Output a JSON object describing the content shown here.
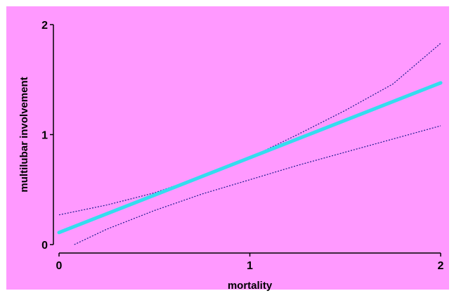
{
  "chart_data": {
    "type": "line",
    "title": "",
    "xlabel": "mortality",
    "ylabel": "multilubar involvement",
    "xlim": [
      0,
      2
    ],
    "ylim": [
      0,
      2
    ],
    "x_ticks": [
      0,
      1,
      2
    ],
    "y_ticks": [
      0,
      1,
      2
    ],
    "x_tick_labels": [
      "0",
      "1",
      "2"
    ],
    "y_tick_labels": [
      "0",
      "1",
      "2"
    ],
    "grid": false,
    "legend": "none",
    "background_color": "#ff99ff",
    "series": [
      {
        "role": "fit",
        "color": "#33ddee",
        "style": "solid-thick",
        "x": [
          0,
          2
        ],
        "y": [
          0.11,
          1.47
        ]
      },
      {
        "role": "upper-bound",
        "color": "#1a1a8c",
        "style": "dotted",
        "x": [
          0,
          0.25,
          0.5,
          0.75,
          1,
          1.25,
          1.5,
          1.75,
          2
        ],
        "y": [
          0.27,
          0.36,
          0.47,
          0.62,
          0.79,
          1.0,
          1.22,
          1.46,
          1.83
        ]
      },
      {
        "role": "lower-bound",
        "color": "#1a1a8c",
        "style": "dotted",
        "x": [
          0.08,
          0.25,
          0.5,
          0.75,
          1,
          1.25,
          1.5,
          1.75,
          2
        ],
        "y": [
          0.0,
          0.14,
          0.31,
          0.46,
          0.59,
          0.72,
          0.84,
          0.96,
          1.08
        ]
      }
    ]
  }
}
